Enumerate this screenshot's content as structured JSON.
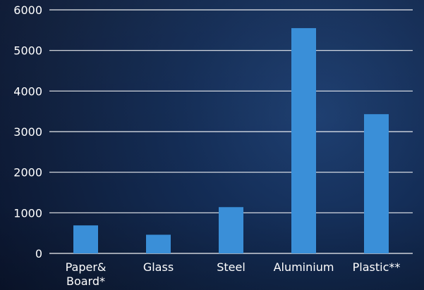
{
  "chart_data": {
    "type": "bar",
    "categories": [
      "Paper& Board*",
      "Glass",
      "Steel",
      "Aluminium",
      "Plastic**"
    ],
    "values": [
      690,
      460,
      1140,
      5550,
      3430
    ],
    "yticks": [
      0,
      1000,
      2000,
      3000,
      4000,
      5000,
      6000
    ],
    "ylim": [
      0,
      6000
    ],
    "grid": true,
    "bar_color": "#3A8FD8",
    "grid_color": "#FFFFFF",
    "text_color": "#FFFFFF",
    "background": "#132C55"
  }
}
